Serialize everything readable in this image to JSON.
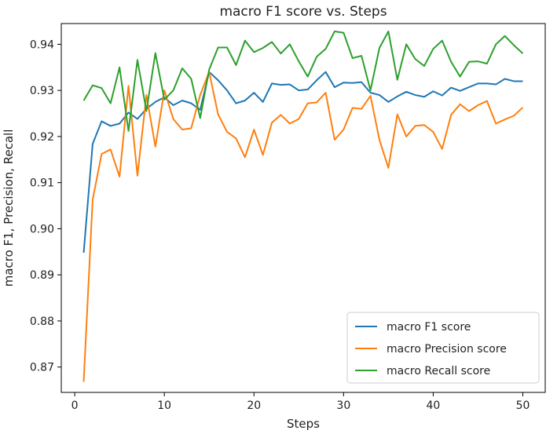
{
  "chart_data": {
    "type": "line",
    "title": "macro F1 score vs. Steps",
    "xlabel": "Steps",
    "ylabel": "macro F1, Precision, Recall",
    "xlim": [
      -1.5,
      52.5
    ],
    "ylim": [
      0.8645,
      0.9445
    ],
    "xticks": [
      0,
      10,
      20,
      30,
      40,
      50
    ],
    "yticks": [
      0.87,
      0.88,
      0.89,
      0.9,
      0.91,
      0.92,
      0.93,
      0.94
    ],
    "ytick_labels": [
      "0.87",
      "0.88",
      "0.89",
      "0.90",
      "0.91",
      "0.92",
      "0.93",
      "0.94"
    ],
    "legend_position": "lower-right",
    "grid": false,
    "x": [
      1,
      2,
      3,
      4,
      5,
      6,
      7,
      8,
      9,
      10,
      11,
      12,
      13,
      14,
      15,
      16,
      17,
      18,
      19,
      20,
      21,
      22,
      23,
      24,
      25,
      26,
      27,
      28,
      29,
      30,
      31,
      32,
      33,
      34,
      35,
      36,
      37,
      38,
      39,
      40,
      41,
      42,
      43,
      44,
      45,
      46,
      47,
      48,
      49,
      50
    ],
    "series": [
      {
        "name": "macro F1 score",
        "color": "#1f77b4",
        "values": [
          0.8948,
          0.9184,
          0.9233,
          0.9223,
          0.9228,
          0.9252,
          0.9238,
          0.926,
          0.9275,
          0.9285,
          0.9268,
          0.9278,
          0.9272,
          0.9258,
          0.934,
          0.9322,
          0.93,
          0.9272,
          0.9278,
          0.9295,
          0.9275,
          0.9315,
          0.9312,
          0.9313,
          0.93,
          0.9302,
          0.9322,
          0.934,
          0.9307,
          0.9317,
          0.9316,
          0.9318,
          0.9295,
          0.929,
          0.9275,
          0.9287,
          0.9297,
          0.929,
          0.9286,
          0.9298,
          0.9289,
          0.9306,
          0.9299,
          0.9307,
          0.9315,
          0.9315,
          0.9313,
          0.9325,
          0.932,
          0.932
        ]
      },
      {
        "name": "macro Precision score",
        "color": "#ff7f0e",
        "values": [
          0.8668,
          0.9063,
          0.9162,
          0.9172,
          0.9113,
          0.931,
          0.9115,
          0.929,
          0.9178,
          0.93,
          0.9238,
          0.9215,
          0.9218,
          0.929,
          0.934,
          0.9248,
          0.921,
          0.9196,
          0.9155,
          0.9215,
          0.916,
          0.923,
          0.9247,
          0.9228,
          0.9238,
          0.9272,
          0.9274,
          0.9295,
          0.9193,
          0.9215,
          0.9262,
          0.926,
          0.9288,
          0.9193,
          0.9132,
          0.9248,
          0.92,
          0.9223,
          0.9225,
          0.921,
          0.9173,
          0.9247,
          0.927,
          0.9255,
          0.9268,
          0.9277,
          0.9228,
          0.9237,
          0.9245,
          0.9263
        ]
      },
      {
        "name": "macro Recall score",
        "color": "#2ca02c",
        "values": [
          0.9278,
          0.9311,
          0.9305,
          0.9272,
          0.935,
          0.9212,
          0.9366,
          0.9255,
          0.9381,
          0.928,
          0.93,
          0.9348,
          0.9325,
          0.924,
          0.9345,
          0.9393,
          0.9393,
          0.9355,
          0.9408,
          0.9383,
          0.9392,
          0.9405,
          0.938,
          0.94,
          0.9363,
          0.933,
          0.9373,
          0.939,
          0.9428,
          0.9425,
          0.937,
          0.9375,
          0.93,
          0.9392,
          0.9428,
          0.9323,
          0.94,
          0.9368,
          0.9353,
          0.939,
          0.9408,
          0.9362,
          0.933,
          0.9362,
          0.9363,
          0.9358,
          0.94,
          0.9418,
          0.9398,
          0.938
        ]
      }
    ]
  }
}
